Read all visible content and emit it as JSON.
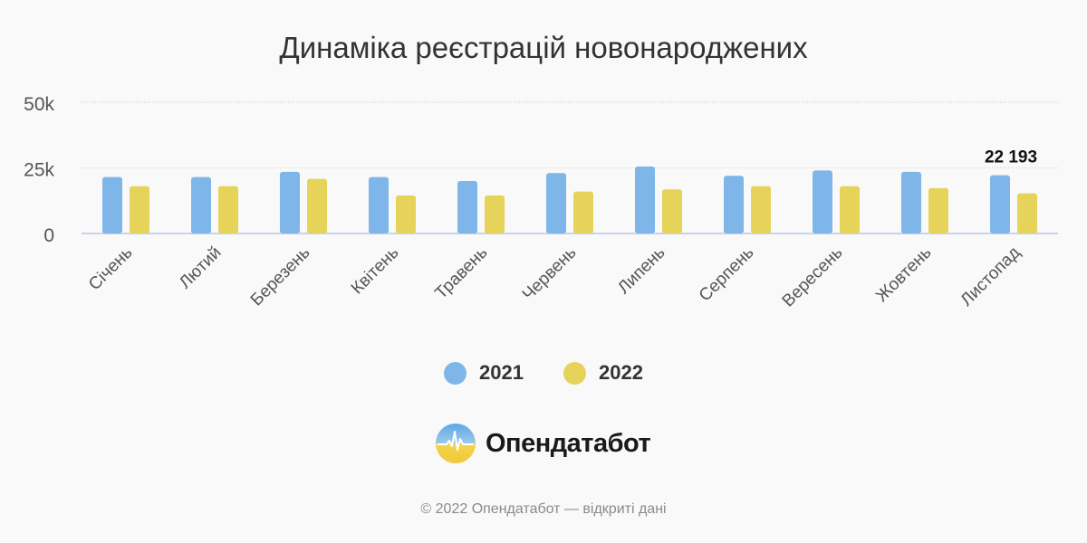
{
  "title": "Динаміка реєстрацій новонароджених",
  "colors": {
    "series_2021": "#7eb6ea",
    "series_2022": "#e6d35a",
    "grid": "#c8cbd0",
    "axis": "#b9c8e8"
  },
  "chart_data": {
    "type": "bar",
    "title": "Динаміка реєстрацій новонароджених",
    "categories": [
      "Січень",
      "Лютий",
      "Березень",
      "Квітень",
      "Травень",
      "Червень",
      "Липень",
      "Серпень",
      "Вересень",
      "Жовтень",
      "Листопад"
    ],
    "series": [
      {
        "name": "2021",
        "color": "#7eb6ea",
        "values": [
          21500,
          21500,
          23500,
          21500,
          20000,
          23000,
          25500,
          22000,
          24000,
          23500,
          22193
        ]
      },
      {
        "name": "2022",
        "color": "#e6d35a",
        "values": [
          18000,
          18000,
          20800,
          14500,
          14500,
          16000,
          16800,
          18000,
          18000,
          17300,
          15300
        ]
      }
    ],
    "y_ticks": [
      "0",
      "25k",
      "50k"
    ],
    "ylim": [
      0,
      50000
    ],
    "grid": true,
    "legend": "bottom",
    "annotation": {
      "category": "Листопад",
      "series": "2021",
      "text": "22 193"
    }
  },
  "legend": [
    {
      "label": "2021",
      "color": "#7eb6ea"
    },
    {
      "label": "2022",
      "color": "#e6d35a"
    }
  ],
  "logo": {
    "text": "Опендатабот"
  },
  "footer": "© 2022 Опендатабот — відкриті дані"
}
